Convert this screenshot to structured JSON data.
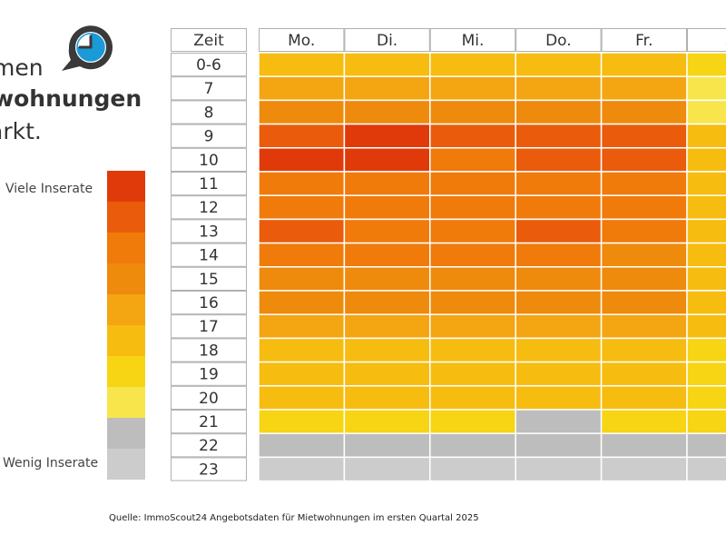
{
  "title": {
    "line1": "men",
    "line2": "wohnungen",
    "line3": "arkt."
  },
  "legend": {
    "high_label": "Viele Inserate",
    "low_label": "Wenig Inserate",
    "colors": [
      "#e03a0a",
      "#ea5b0c",
      "#f07a0a",
      "#ee8a0c",
      "#f3a512",
      "#f6bc10",
      "#f7d414",
      "#f8e54c",
      "#bdbdbd",
      "#cccccc"
    ]
  },
  "source": "Quelle: ImmoScout24 Angebotsdaten für Mietwohnungen im ersten Quartal 2025",
  "colors": {
    "grid_line": "#ffffff",
    "header_border": "#b0b0b0",
    "text": "#333333"
  },
  "chart_data": {
    "type": "heatmap",
    "row_header": "Zeit",
    "columns": [
      "Mo.",
      "Di.",
      "Mi.",
      "Do.",
      "Fr.",
      "S"
    ],
    "rows": [
      "0-6",
      "7",
      "8",
      "9",
      "10",
      "11",
      "12",
      "13",
      "14",
      "15",
      "16",
      "17",
      "18",
      "19",
      "20",
      "21",
      "22",
      "23"
    ],
    "values": [
      [
        5,
        5,
        5,
        5,
        5,
        6
      ],
      [
        4,
        4,
        4,
        4,
        4,
        7
      ],
      [
        3,
        3,
        3,
        3,
        3,
        7
      ],
      [
        1,
        0,
        1,
        1,
        1,
        5
      ],
      [
        0,
        0,
        2,
        1,
        1,
        5
      ],
      [
        2,
        2,
        2,
        2,
        2,
        5
      ],
      [
        2,
        2,
        2,
        2,
        2,
        5
      ],
      [
        1,
        2,
        2,
        1,
        2,
        5
      ],
      [
        2,
        2,
        2,
        2,
        3,
        5
      ],
      [
        3,
        3,
        3,
        3,
        3,
        5
      ],
      [
        3,
        3,
        3,
        3,
        3,
        5
      ],
      [
        4,
        4,
        4,
        4,
        4,
        5
      ],
      [
        5,
        5,
        5,
        5,
        5,
        6
      ],
      [
        5,
        5,
        5,
        5,
        5,
        6
      ],
      [
        5,
        5,
        5,
        5,
        5,
        6
      ],
      [
        6,
        6,
        6,
        8,
        6,
        6
      ],
      [
        8,
        8,
        8,
        8,
        8,
        8
      ],
      [
        9,
        9,
        9,
        9,
        9,
        9
      ]
    ]
  }
}
